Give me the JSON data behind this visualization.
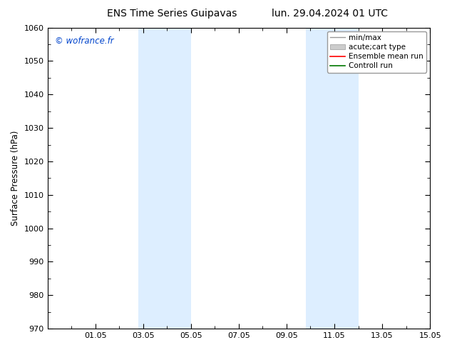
{
  "title_left": "ENS Time Series Guipavas",
  "title_right": "lun. 29.04.2024 01 UTC",
  "ylabel": "Surface Pressure (hPa)",
  "ymin": 970,
  "ymax": 1060,
  "ytick_step": 10,
  "xtick_labels": [
    "01.05",
    "03.05",
    "05.05",
    "07.05",
    "09.05",
    "11.05",
    "13.05",
    "15.05"
  ],
  "xmin": 0,
  "xmax": 14,
  "xtick_positions": [
    1,
    3,
    5,
    7,
    9,
    11,
    13,
    15
  ],
  "watermark": "© wofrance.fr",
  "watermark_color": "#0044cc",
  "band_color": "#ddeeff",
  "bands": [
    [
      3.8,
      4.6
    ],
    [
      4.8,
      5.6
    ],
    [
      10.8,
      11.6
    ],
    [
      11.8,
      12.6
    ]
  ],
  "legend_entries": [
    "min/max",
    "acute;cart type",
    "Ensemble mean run",
    "Controll run"
  ],
  "legend_line_color": "#999999",
  "legend_patch_color": "#cccccc",
  "legend_red": "#ff0000",
  "legend_green": "#007700",
  "background_color": "#ffffff",
  "plot_bg_color": "#ffffff",
  "title_fontsize": 10,
  "tick_fontsize": 8,
  "ylabel_fontsize": 8.5,
  "legend_fontsize": 7.5
}
